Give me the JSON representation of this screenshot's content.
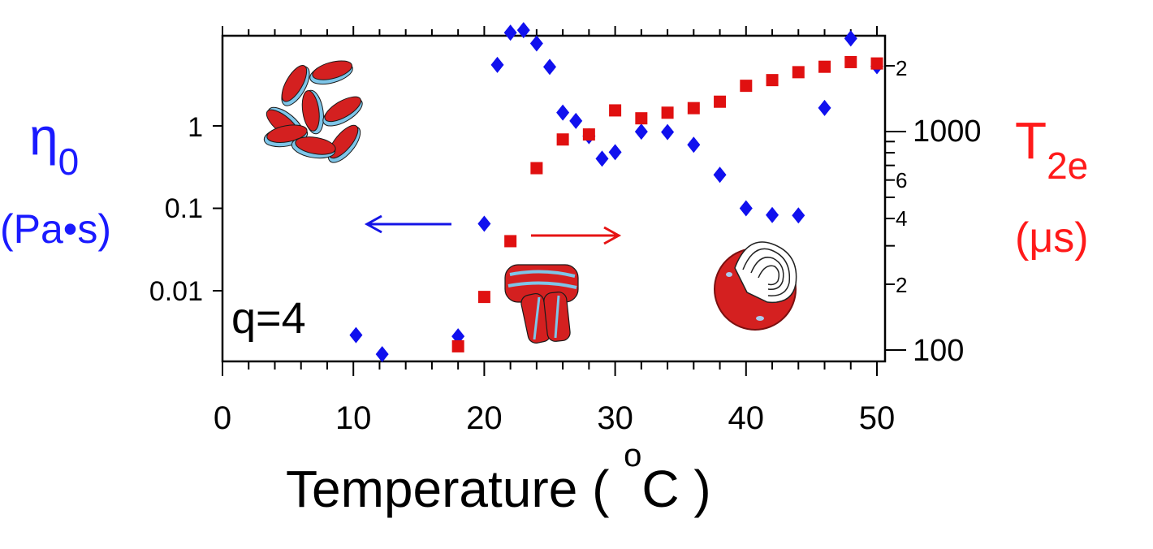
{
  "chart_data": {
    "type": "scatter",
    "xlabel_text": "Temperature ( ",
    "xlabel_degree": "o",
    "xlabel_unit": "C )",
    "x_ticks": [
      "0",
      "10",
      "20",
      "30",
      "40",
      "50"
    ],
    "xlim": [
      0,
      50
    ],
    "left_axis": {
      "label_symbol": "η",
      "label_subscript": "0",
      "label_unit": "(Pa•s)",
      "color": "#1a1aff",
      "scale": "log",
      "ticks": [
        "1",
        "0.1",
        "0.01"
      ]
    },
    "right_axis": {
      "label_symbol": "T",
      "label_subscript": "2e",
      "label_unit": "(μs)",
      "color": "#ff1a1a",
      "scale": "log",
      "major_ticks": [
        "2",
        "1000",
        "6",
        "4",
        "2",
        "100"
      ]
    },
    "annotation": "q=4",
    "series": [
      {
        "marker": "diamond",
        "color": "#1010ee",
        "axis": "left",
        "points": [
          [
            10.2,
            0.0029
          ],
          [
            12.2,
            0.0017
          ],
          [
            18.0,
            0.0028
          ],
          [
            20.0,
            0.065
          ],
          [
            21.0,
            5.5
          ],
          [
            22.0,
            13.5
          ],
          [
            23.0,
            14.5
          ],
          [
            24.0,
            10.0
          ],
          [
            25.0,
            5.2
          ],
          [
            26.0,
            1.45
          ],
          [
            27.0,
            1.15
          ],
          [
            28.0,
            0.75
          ],
          [
            29.0,
            0.4
          ],
          [
            30.0,
            0.48
          ],
          [
            32.0,
            0.85
          ],
          [
            34.0,
            0.84
          ],
          [
            36.0,
            0.59
          ],
          [
            38.0,
            0.255
          ],
          [
            40.0,
            0.1
          ],
          [
            42.0,
            0.083
          ],
          [
            44.0,
            0.082
          ],
          [
            46.0,
            1.65
          ],
          [
            48.0,
            11.5
          ],
          [
            50.0,
            5.3
          ]
        ]
      },
      {
        "marker": "square",
        "color": "#e01010",
        "axis": "right",
        "points": [
          [
            18.0,
            104
          ],
          [
            20.0,
            175
          ],
          [
            22.0,
            315
          ],
          [
            24.0,
            680
          ],
          [
            26.0,
            920
          ],
          [
            28.0,
            970
          ],
          [
            30.0,
            1250
          ],
          [
            32.0,
            1150
          ],
          [
            34.0,
            1220
          ],
          [
            36.0,
            1280
          ],
          [
            38.0,
            1370
          ],
          [
            40.0,
            1620
          ],
          [
            42.0,
            1720
          ],
          [
            44.0,
            1870
          ],
          [
            46.0,
            1980
          ],
          [
            48.0,
            2080
          ],
          [
            50.0,
            2050
          ]
        ]
      }
    ]
  }
}
